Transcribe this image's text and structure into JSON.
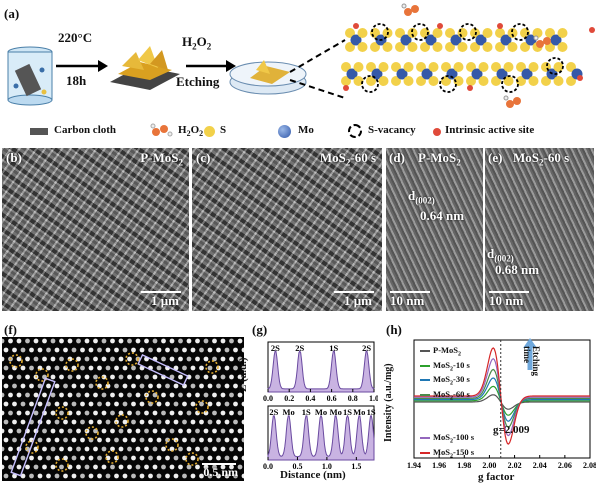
{
  "panel_a": {
    "label": "(a)",
    "temp": "220°C",
    "time": "18h",
    "reagent_main": "H",
    "reagent_sub1": "2",
    "reagent_o": "O",
    "reagent_sub2": "2",
    "etching": "Etching"
  },
  "legend": {
    "carbon_cloth": "Carbon cloth",
    "h2o2_main": "H",
    "h2o2_sub1": "2",
    "h2o2_o": "O",
    "h2o2_sub2": "2",
    "s": "S",
    "mo": "Mo",
    "s_vacancy": "S-vacancy",
    "intrinsic": "Intrinsic active site"
  },
  "panel_b": {
    "label": "(b)",
    "title_main": "P-MoS",
    "title_sub": "2",
    "scale": "1 μm"
  },
  "panel_c": {
    "label": "(c)",
    "title_main": "MoS",
    "title_sub": "2",
    "title_tail": "-60 s",
    "scale": "1 μm"
  },
  "panel_d": {
    "label": "(d)",
    "title_main": "P-MoS",
    "title_sub": "2",
    "d_main": "d",
    "d_sub": "(002)",
    "d_value": "0.64 nm",
    "scale": "10 nm"
  },
  "panel_e": {
    "label": "(e)",
    "title_main": "MoS",
    "title_sub": "2",
    "title_tail": "-60 s",
    "d_main": "d",
    "d_sub": "(002)",
    "d_value": "0.68 nm",
    "scale": "10 nm"
  },
  "panel_f": {
    "label": "(f)",
    "scale": "0.5 nm"
  },
  "panel_g": {
    "label": "(g)",
    "ylabel": "Z (a.u.)",
    "xlabel": "Distance (nm)",
    "top_peaks": [
      "2S",
      "2S",
      "1S",
      "2S"
    ],
    "bottom_peaks": [
      "2S",
      "Mo",
      "1S",
      "Mo",
      "Mo",
      "1S",
      "Mo",
      "1S"
    ],
    "top_ticks": [
      "0.0",
      "0.2",
      "0.4",
      "0.6",
      "0.8",
      "1.0"
    ],
    "bottom_ticks": [
      "0.0",
      "0.5",
      "1.0",
      "1.5"
    ]
  },
  "panel_h": {
    "label": "(h)",
    "ylabel": "Intensity (a.u./mg)",
    "xlabel": "g factor",
    "annotation": "g=2.009",
    "arrow_label_1": "Etching",
    "arrow_label_2": "time",
    "series_labels": [
      {
        "main": "P-MoS",
        "sub": "2",
        "tail": ""
      },
      {
        "main": "MoS",
        "sub": "2",
        "tail": "-10 s"
      },
      {
        "main": "MoS",
        "sub": "2",
        "tail": "-30 s"
      },
      {
        "main": "MoS",
        "sub": "2",
        "tail": "-60 s"
      },
      {
        "main": "MoS",
        "sub": "2",
        "tail": "-100 s"
      },
      {
        "main": "MoS",
        "sub": "2",
        "tail": "-150 s"
      }
    ],
    "x_ticks": [
      "1.94",
      "1.96",
      "1.98",
      "2.00",
      "2.02",
      "2.04",
      "2.06",
      "2.08"
    ],
    "colors": [
      "#555555",
      "#2ca02c",
      "#1f77b4",
      "#4a8a4a",
      "#9467bd",
      "#d62728"
    ]
  },
  "chart_data": [
    {
      "type": "line",
      "panel": "g-top",
      "xlabel": "",
      "ylabel": "Z (a.u.)",
      "xlim": [
        0,
        1.0
      ],
      "peaks_x": [
        0.07,
        0.3,
        0.62,
        0.93
      ],
      "peak_labels": [
        "2S",
        "2S",
        "1S",
        "2S"
      ]
    },
    {
      "type": "line",
      "panel": "g-bottom",
      "xlabel": "Distance (nm)",
      "ylabel": "Z (a.u.)",
      "xlim": [
        0,
        1.8
      ],
      "peaks_x": [
        0.1,
        0.35,
        0.65,
        0.9,
        1.15,
        1.35,
        1.55,
        1.75
      ],
      "peak_labels": [
        "2S",
        "Mo",
        "1S",
        "Mo",
        "Mo",
        "1S",
        "Mo",
        "1S"
      ]
    },
    {
      "type": "line",
      "panel": "h",
      "xlabel": "g factor",
      "ylabel": "Intensity (a.u./mg)",
      "xlim": [
        1.94,
        2.08
      ],
      "g_marker": 2.009,
      "series": [
        {
          "name": "P-MoS2",
          "amplitude": 0.15
        },
        {
          "name": "MoS2-10 s",
          "amplitude": 0.3
        },
        {
          "name": "MoS2-30 s",
          "amplitude": 0.45
        },
        {
          "name": "MoS2-60 s",
          "amplitude": 0.6
        },
        {
          "name": "MoS2-100 s",
          "amplitude": 0.8
        },
        {
          "name": "MoS2-150 s",
          "amplitude": 1.0
        }
      ]
    }
  ]
}
